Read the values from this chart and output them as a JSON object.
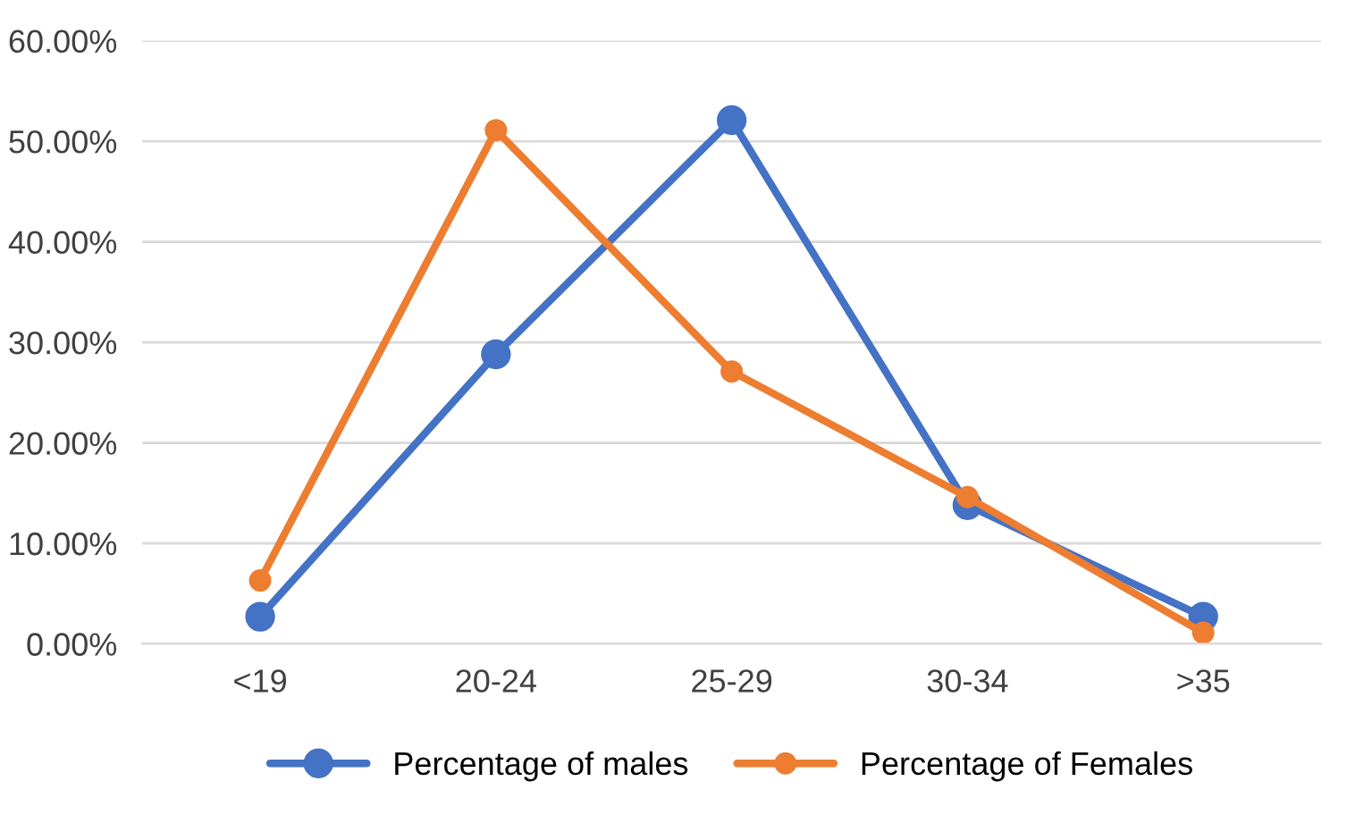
{
  "chart_data": {
    "type": "line",
    "categories": [
      "<19",
      "20-24",
      "25-29",
      "30-34",
      ">35"
    ],
    "series": [
      {
        "name": "Percentage of males",
        "color": "#4472c4",
        "values": [
          2.7,
          28.8,
          52.1,
          13.8,
          2.7
        ]
      },
      {
        "name": "Percentage of Females",
        "color": "#ed7d31",
        "values": [
          6.3,
          51.1,
          27.1,
          14.6,
          1.1
        ]
      }
    ],
    "ylim": [
      0,
      60
    ],
    "yticks": [
      {
        "value": 0,
        "label": "0.00%"
      },
      {
        "value": 10,
        "label": "10.00%"
      },
      {
        "value": 20,
        "label": "20.00%"
      },
      {
        "value": 30,
        "label": "30.00%"
      },
      {
        "value": 40,
        "label": "40.00%"
      },
      {
        "value": 50,
        "label": "50.00%"
      },
      {
        "value": 60,
        "label": "60.00%"
      }
    ],
    "grid": "y",
    "legend": "bottom",
    "marker": "circle",
    "line_style": "solid"
  }
}
